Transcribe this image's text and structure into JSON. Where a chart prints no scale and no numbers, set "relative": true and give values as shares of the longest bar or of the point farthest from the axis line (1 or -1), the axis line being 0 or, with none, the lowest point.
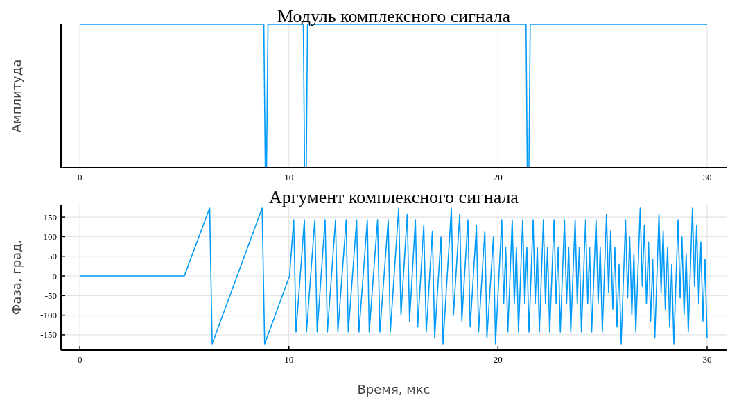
{
  "chart_data": [
    {
      "type": "line",
      "title": "Модуль комплексного сигнала",
      "ylabel": "Амплитуда",
      "relative": true,
      "grid": "x",
      "xlim": [
        -0.9,
        30.93
      ],
      "xticks": [
        0,
        10,
        20,
        30
      ],
      "series": [
        {
          "color": "#009af9",
          "x": [
            0,
            8.8,
            8.87,
            8.93,
            9.0,
            10.69,
            10.75,
            10.83,
            10.89,
            21.34,
            21.4,
            21.48,
            21.54,
            30.0
          ],
          "values": [
            1,
            1,
            0,
            0,
            1,
            1,
            0,
            0,
            1,
            1,
            0,
            0,
            1,
            1
          ]
        }
      ]
    },
    {
      "type": "line",
      "title": "Аргумент комплексного сигнала",
      "xlabel": "Время, мкс",
      "ylabel": "Фаза, град.",
      "grid": true,
      "xlim": [
        -0.9,
        30.93
      ],
      "xticks": [
        0,
        10,
        20,
        30
      ],
      "ylim": [
        -189,
        182
      ],
      "yticks": [
        -150,
        -100,
        -50,
        0,
        50,
        100,
        150
      ],
      "series": [
        {
          "color": "#009af9",
          "x": [
            0,
            5.0,
            6.21,
            6.33,
            8.72,
            8.84,
            10.03,
            10.23,
            10.34,
            10.74,
            10.84,
            11.24,
            11.35,
            11.73,
            11.84,
            12.23,
            12.34,
            12.74,
            12.84,
            13.24,
            13.35,
            13.75,
            13.84,
            14.24,
            14.35,
            14.75,
            14.85,
            15.25,
            15.36,
            15.66,
            15.77,
            16.05,
            16.16,
            16.45,
            16.57,
            16.86,
            16.97,
            17.27,
            17.37,
            17.77,
            17.87,
            18.17,
            18.27,
            18.56,
            18.67,
            18.97,
            19.07,
            19.37,
            19.47,
            19.78,
            19.88,
            20.18,
            20.27,
            20.37,
            20.47,
            20.68,
            20.78,
            20.88,
            20.98,
            21.18,
            21.28,
            21.38,
            21.48,
            21.68,
            21.78,
            21.88,
            21.98,
            22.17,
            22.27,
            22.37,
            22.47,
            22.68,
            22.78,
            22.88,
            22.98,
            23.18,
            23.28,
            23.38,
            23.48,
            23.69,
            23.79,
            23.89,
            23.99,
            24.19,
            24.29,
            24.38,
            24.48,
            24.69,
            24.79,
            24.89,
            24.99,
            25.19,
            25.29,
            25.39,
            25.49,
            25.59,
            25.69,
            25.79,
            25.89,
            26.1,
            26.2,
            26.3,
            26.4,
            26.5,
            26.59,
            26.8,
            26.9,
            27.0,
            27.1,
            27.2,
            27.3,
            27.4,
            27.5,
            27.7,
            27.8,
            27.9,
            28.0,
            28.11,
            28.21,
            28.31,
            28.41,
            28.61,
            28.71,
            28.8,
            28.9,
            29.0,
            29.1,
            29.3,
            29.4,
            29.5,
            29.6,
            29.7,
            29.8,
            29.9,
            30.0
          ],
          "values": [
            0,
            0,
            173,
            -173,
            173,
            -173,
            0,
            143,
            -143,
            143,
            -143,
            143,
            -143,
            143,
            -143,
            143,
            -143,
            143,
            -143,
            143,
            -143,
            143,
            -143,
            143,
            -143,
            143,
            -143,
            173,
            -100,
            158,
            -115,
            143,
            -130,
            129,
            -143,
            114,
            -158,
            99,
            -173,
            173,
            -100,
            158,
            -115,
            143,
            -130,
            129,
            -143,
            114,
            -158,
            99,
            -173,
            143,
            -71,
            73,
            -143,
            143,
            -71,
            73,
            -143,
            143,
            -71,
            73,
            -143,
            143,
            -71,
            73,
            -143,
            143,
            -71,
            73,
            -143,
            143,
            -71,
            73,
            -143,
            143,
            -71,
            73,
            -143,
            143,
            -71,
            73,
            -143,
            143,
            -71,
            73,
            -143,
            143,
            -71,
            73,
            -143,
            158,
            -42,
            115,
            -85,
            73,
            -130,
            29,
            -173,
            143,
            -56,
            99,
            -99,
            56,
            -143,
            173,
            -27,
            130,
            -71,
            86,
            -115,
            43,
            -158,
            158,
            -42,
            115,
            -85,
            73,
            -130,
            29,
            -173,
            143,
            -56,
            99,
            -99,
            56,
            -143,
            173,
            -27,
            130,
            -71,
            86,
            -115,
            43,
            -158
          ]
        }
      ]
    }
  ]
}
